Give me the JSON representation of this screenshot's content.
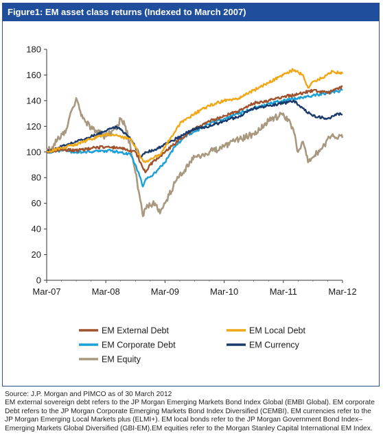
{
  "header": {
    "title": "Figure1: EM asset class returns  (Indexed to March 2007)"
  },
  "chart_data": {
    "type": "line",
    "title": "",
    "xlabel": "",
    "ylabel": "",
    "x_ticks": [
      "Mar-07",
      "Mar-08",
      "Mar-09",
      "Mar-10",
      "Mar-11",
      "Mar-12"
    ],
    "y_ticks": [
      0,
      20,
      40,
      60,
      80,
      100,
      120,
      140,
      160,
      180
    ],
    "ylim": [
      0,
      180
    ],
    "xlim": [
      0,
      60
    ],
    "x_unit": "months since Mar-07",
    "grid": false,
    "legend_position": "bottom",
    "series": [
      {
        "name": "EM External Debt",
        "color": "#a0522d",
        "values": [
          [
            0,
            100
          ],
          [
            3,
            102
          ],
          [
            6,
            101
          ],
          [
            9,
            103
          ],
          [
            12,
            104
          ],
          [
            15,
            103
          ],
          [
            18,
            100
          ],
          [
            19,
            92
          ],
          [
            20,
            84
          ],
          [
            21,
            90
          ],
          [
            24,
            100
          ],
          [
            27,
            110
          ],
          [
            30,
            118
          ],
          [
            33,
            124
          ],
          [
            36,
            128
          ],
          [
            39,
            132
          ],
          [
            42,
            138
          ],
          [
            45,
            140
          ],
          [
            48,
            143
          ],
          [
            51,
            145
          ],
          [
            54,
            148
          ],
          [
            57,
            146
          ],
          [
            60,
            151
          ]
        ]
      },
      {
        "name": "EM Local Debt",
        "color": "#f0a818",
        "values": [
          [
            0,
            100
          ],
          [
            3,
            103
          ],
          [
            6,
            106
          ],
          [
            9,
            110
          ],
          [
            12,
            114
          ],
          [
            15,
            112
          ],
          [
            17,
            110
          ],
          [
            18,
            104
          ],
          [
            19,
            96
          ],
          [
            20,
            92
          ],
          [
            21,
            94
          ],
          [
            23,
            98
          ],
          [
            25,
            110
          ],
          [
            27,
            122
          ],
          [
            30,
            130
          ],
          [
            33,
            136
          ],
          [
            36,
            140
          ],
          [
            39,
            142
          ],
          [
            42,
            148
          ],
          [
            45,
            154
          ],
          [
            48,
            160
          ],
          [
            50,
            164
          ],
          [
            52,
            160
          ],
          [
            53,
            150
          ],
          [
            54,
            155
          ],
          [
            56,
            158
          ],
          [
            58,
            163
          ],
          [
            60,
            161
          ]
        ]
      },
      {
        "name": "EM Corporate Debt",
        "color": "#1aa0d6",
        "values": [
          [
            0,
            100
          ],
          [
            3,
            101
          ],
          [
            6,
            100
          ],
          [
            9,
            100
          ],
          [
            12,
            101
          ],
          [
            15,
            100
          ],
          [
            17,
            98
          ],
          [
            18,
            90
          ],
          [
            19,
            80
          ],
          [
            19.5,
            73
          ],
          [
            20,
            78
          ],
          [
            22,
            84
          ],
          [
            24,
            92
          ],
          [
            26,
            104
          ],
          [
            28,
            112
          ],
          [
            30,
            116
          ],
          [
            33,
            122
          ],
          [
            36,
            126
          ],
          [
            39,
            130
          ],
          [
            42,
            134
          ],
          [
            45,
            138
          ],
          [
            48,
            140
          ],
          [
            51,
            142
          ],
          [
            54,
            144
          ],
          [
            57,
            146
          ],
          [
            60,
            148
          ]
        ]
      },
      {
        "name": "EM Currency",
        "color": "#1a3a6b",
        "values": [
          [
            0,
            100
          ],
          [
            3,
            104
          ],
          [
            6,
            108
          ],
          [
            9,
            112
          ],
          [
            12,
            116
          ],
          [
            14,
            120
          ],
          [
            15,
            118
          ],
          [
            17,
            110
          ],
          [
            18,
            104
          ],
          [
            19,
            96
          ],
          [
            20,
            100
          ],
          [
            22,
            102
          ],
          [
            24,
            106
          ],
          [
            27,
            112
          ],
          [
            30,
            118
          ],
          [
            33,
            120
          ],
          [
            36,
            124
          ],
          [
            39,
            128
          ],
          [
            42,
            134
          ],
          [
            45,
            136
          ],
          [
            48,
            138
          ],
          [
            50,
            140
          ],
          [
            52,
            134
          ],
          [
            54,
            128
          ],
          [
            57,
            126
          ],
          [
            59,
            130
          ],
          [
            60,
            129
          ]
        ]
      },
      {
        "name": "EM Equity",
        "color": "#a89880",
        "values": [
          [
            0,
            100
          ],
          [
            2,
            108
          ],
          [
            4,
            118
          ],
          [
            5,
            132
          ],
          [
            6,
            142
          ],
          [
            7,
            128
          ],
          [
            9,
            118
          ],
          [
            12,
            112
          ],
          [
            14,
            118
          ],
          [
            15,
            126
          ],
          [
            16,
            120
          ],
          [
            17,
            104
          ],
          [
            18,
            84
          ],
          [
            19,
            62
          ],
          [
            19.5,
            50
          ],
          [
            20,
            56
          ],
          [
            22,
            60
          ],
          [
            23,
            52
          ],
          [
            24,
            60
          ],
          [
            26,
            76
          ],
          [
            28,
            86
          ],
          [
            30,
            96
          ],
          [
            33,
            100
          ],
          [
            36,
            104
          ],
          [
            39,
            110
          ],
          [
            42,
            114
          ],
          [
            45,
            124
          ],
          [
            48,
            130
          ],
          [
            50,
            118
          ],
          [
            51,
            100
          ],
          [
            52,
            108
          ],
          [
            53,
            92
          ],
          [
            54,
            96
          ],
          [
            56,
            104
          ],
          [
            58,
            114
          ],
          [
            60,
            111
          ]
        ]
      }
    ]
  },
  "legend": [
    {
      "label": "EM External Debt",
      "color": "#a0522d"
    },
    {
      "label": "EM Local Debt",
      "color": "#f0a818"
    },
    {
      "label": "EM Corporate Debt",
      "color": "#1aa0d6"
    },
    {
      "label": "EM Currency",
      "color": "#1a3a6b"
    },
    {
      "label": "EM Equity",
      "color": "#a89880"
    }
  ],
  "footnote": {
    "lines": [
      "Source: J.P. Morgan and PIMCO as of 30 March 2012",
      "EM external sovereign debt refers to the JP Morgan Emerging Markets Bond Index Global (EMBI Global). EM corporate",
      "Debt refers to the JP Morgan Corporate Emerging Markets Bond Index Diversified (CEMBI). EM currencies refer to the",
      "JP Morgan Emerging Local Markets plus (ELMI+). EM local bonds refer to the JP Morgan Government Bond Index–",
      "Emerging Markets Global Diversified (GBI-EM).EM equities refer to the Morgan Stanley Capital International EM Index."
    ]
  }
}
